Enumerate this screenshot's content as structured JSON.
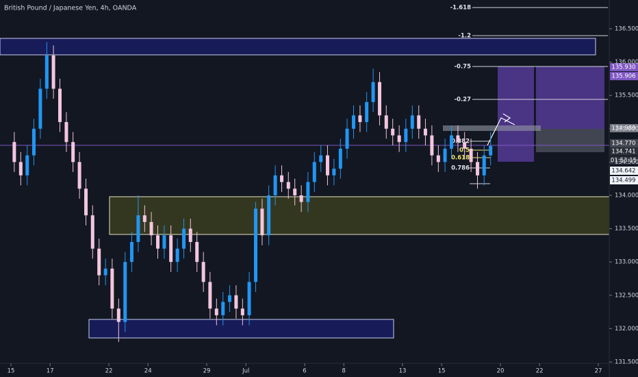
{
  "chart_data": {
    "type": "candlestick",
    "title": "British Pound / Japanese Yen, 4h, OANDA",
    "up_color": "#2196f3",
    "down_color": "#f2c6de",
    "xlim": [
      -0.56,
      30.56
    ],
    "xticks": [
      {
        "value": 0,
        "label": "15"
      },
      {
        "value": 2,
        "label": "17"
      },
      {
        "value": 5,
        "label": "22"
      },
      {
        "value": 7,
        "label": "24"
      },
      {
        "value": 10,
        "label": "29"
      },
      {
        "value": 12,
        "label": "Jul"
      },
      {
        "value": 15,
        "label": "6"
      },
      {
        "value": 17,
        "label": "8"
      },
      {
        "value": 20,
        "label": "13"
      },
      {
        "value": 22,
        "label": "15"
      },
      {
        "value": 25,
        "label": "20"
      },
      {
        "value": 27,
        "label": "22"
      },
      {
        "value": 30,
        "label": "27"
      }
    ],
    "ylim": [
      131.479,
      136.932
    ],
    "yticks": [
      {
        "value": 131.5,
        "label": "131.500"
      },
      {
        "value": 132,
        "label": "132.000"
      },
      {
        "value": 132.5,
        "label": "132.500"
      },
      {
        "value": 133,
        "label": "133.000"
      },
      {
        "value": 133.5,
        "label": "133.500"
      },
      {
        "value": 134,
        "label": "134.000"
      },
      {
        "value": 134.5,
        "label": "134.500"
      },
      {
        "value": 135,
        "label": "135.000"
      },
      {
        "value": 135.5,
        "label": "135.500"
      },
      {
        "value": 136,
        "label": "136.000"
      },
      {
        "value": 136.5,
        "label": "136.500"
      }
    ],
    "candles": {
      "x": [
        0.17,
        0.5,
        0.83,
        1.17,
        1.5,
        1.83,
        2.17,
        2.5,
        2.83,
        3.17,
        3.5,
        3.83,
        4.17,
        4.5,
        4.83,
        5.17,
        5.5,
        5.83,
        6.17,
        6.5,
        6.83,
        7.17,
        7.5,
        7.83,
        8.17,
        8.5,
        8.83,
        9.17,
        9.5,
        9.83,
        10.17,
        10.5,
        10.83,
        11.17,
        11.5,
        11.83,
        12.17,
        12.5,
        12.83,
        13.17,
        13.5,
        13.83,
        14.17,
        14.5,
        14.83,
        15.17,
        15.5,
        15.83,
        16.17,
        16.5,
        16.83,
        17.17,
        17.5,
        17.83,
        18.17,
        18.5,
        18.83,
        19.17,
        19.5,
        19.83,
        20.17,
        20.5,
        20.83,
        21.17,
        21.5,
        21.83,
        22.17,
        22.5,
        22.83,
        23.17,
        23.5,
        23.83,
        24.17,
        24.5
      ],
      "open": [
        134.8,
        134.5,
        134.3,
        134.6,
        135.0,
        135.6,
        136.1,
        135.6,
        135.1,
        134.8,
        134.5,
        134.1,
        133.7,
        133.2,
        132.8,
        132.9,
        132.3,
        132.1,
        133.0,
        133.3,
        133.7,
        133.6,
        133.4,
        133.2,
        133.4,
        133.0,
        133.2,
        133.5,
        133.3,
        133.0,
        132.7,
        132.3,
        132.2,
        132.4,
        132.5,
        132.3,
        132.2,
        132.7,
        133.8,
        133.4,
        134.0,
        134.3,
        134.2,
        134.1,
        134.0,
        133.9,
        134.2,
        134.5,
        134.6,
        134.3,
        134.4,
        134.7,
        135.0,
        135.2,
        135.1,
        135.4,
        135.7,
        135.2,
        135.0,
        134.9,
        134.8,
        135.0,
        135.2,
        135.0,
        134.9,
        134.6,
        134.5,
        134.7,
        134.9,
        134.8,
        134.7,
        134.5,
        134.3,
        134.6
      ],
      "high": [
        134.95,
        134.65,
        134.75,
        135.15,
        135.75,
        136.3,
        136.25,
        135.75,
        135.25,
        134.95,
        134.65,
        134.25,
        133.85,
        133.35,
        133.05,
        133.05,
        132.45,
        133.15,
        133.45,
        134.0,
        133.85,
        133.75,
        133.55,
        133.55,
        133.55,
        133.35,
        133.65,
        133.65,
        133.45,
        133.15,
        132.85,
        132.45,
        132.55,
        132.65,
        132.65,
        132.45,
        132.85,
        133.9,
        133.95,
        134.15,
        134.45,
        134.45,
        134.35,
        134.25,
        134.15,
        134.35,
        134.65,
        134.75,
        134.75,
        134.55,
        134.85,
        135.15,
        135.35,
        135.35,
        135.55,
        135.9,
        135.85,
        135.35,
        135.15,
        135.05,
        135.15,
        135.35,
        135.35,
        135.15,
        135.05,
        134.75,
        134.85,
        135.05,
        135.05,
        134.95,
        134.85,
        134.65,
        134.75,
        134.95
      ],
      "low": [
        134.35,
        134.15,
        134.15,
        134.45,
        134.85,
        135.45,
        135.45,
        134.95,
        134.65,
        134.35,
        133.95,
        133.55,
        133.05,
        132.65,
        132.65,
        132.15,
        131.8,
        131.95,
        132.85,
        133.15,
        133.45,
        133.25,
        133.05,
        133.05,
        132.85,
        132.85,
        133.05,
        133.15,
        132.85,
        132.55,
        132.15,
        132.05,
        132.05,
        132.25,
        132.15,
        132.05,
        132.05,
        132.55,
        133.25,
        133.25,
        133.85,
        134.05,
        133.95,
        133.85,
        133.75,
        133.75,
        134.05,
        134.35,
        134.15,
        134.15,
        134.25,
        134.55,
        134.85,
        134.95,
        134.95,
        135.25,
        135.05,
        134.85,
        134.75,
        134.65,
        134.65,
        134.85,
        134.85,
        134.75,
        134.45,
        134.35,
        134.35,
        134.55,
        134.65,
        134.55,
        134.35,
        134.1,
        134.15,
        134.45
      ],
      "close": [
        134.5,
        134.3,
        134.6,
        135.0,
        135.6,
        136.1,
        135.6,
        135.1,
        134.8,
        134.5,
        134.1,
        133.7,
        133.2,
        132.8,
        132.9,
        132.3,
        132.1,
        133.0,
        133.3,
        133.7,
        133.6,
        133.4,
        133.2,
        133.4,
        133.0,
        133.2,
        133.5,
        133.3,
        133.0,
        132.7,
        132.3,
        132.2,
        132.4,
        132.5,
        132.3,
        132.2,
        132.7,
        133.8,
        133.4,
        134.0,
        134.3,
        134.2,
        134.1,
        134.0,
        133.9,
        134.2,
        134.5,
        134.6,
        134.3,
        134.4,
        134.7,
        135.0,
        135.2,
        135.1,
        135.4,
        135.7,
        135.2,
        135.0,
        134.9,
        134.8,
        135.0,
        135.2,
        135.0,
        134.9,
        134.6,
        134.5,
        134.7,
        134.9,
        134.8,
        134.7,
        134.5,
        134.3,
        134.6,
        134.741
      ]
    },
    "fib_labels": [
      "-1.618",
      "-1.2",
      "-0.75",
      "-0.27",
      "0.382",
      "0.5",
      "0.618",
      "0.786"
    ],
    "price_labels": [
      "135.930",
      "135.906",
      "134.989",
      "134.770",
      "134.741",
      "01:53:15",
      "134.642",
      "134.499"
    ]
  }
}
